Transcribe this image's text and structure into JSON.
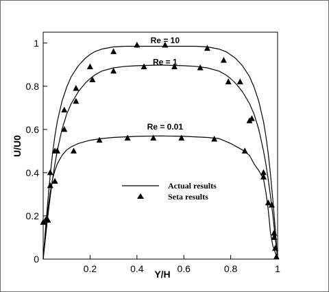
{
  "chart_data": {
    "type": "line",
    "title": "",
    "xlabel": "Y/H",
    "ylabel": "U/U0",
    "xlim": [
      0,
      1.0
    ],
    "ylim": [
      0,
      1.05
    ],
    "x_ticks": [
      {
        "value": 0.2,
        "label": "0.2"
      },
      {
        "value": 0.4,
        "label": "0.4"
      },
      {
        "value": 0.6,
        "label": "0.6"
      },
      {
        "value": 0.8,
        "label": "0.8"
      },
      {
        "value": 1.0,
        "label": "1"
      }
    ],
    "y_ticks": [
      {
        "value": 0,
        "label": "0"
      },
      {
        "value": 0.2,
        "label": "0.2"
      },
      {
        "value": 0.4,
        "label": "0.4"
      },
      {
        "value": 0.6,
        "label": "0.6"
      },
      {
        "value": 0.8,
        "label": "0.8"
      },
      {
        "value": 1.0,
        "label": "1"
      }
    ],
    "grid": false,
    "legend": {
      "placement": "center",
      "entries": [
        {
          "label": "Actual results",
          "style": "line"
        },
        {
          "label": "Seta results",
          "style": "triangle"
        }
      ]
    },
    "series": [
      {
        "name": "Re = 10",
        "label_at": [
          0.52,
          1.0
        ],
        "line": {
          "x": [
            0.0,
            0.005,
            0.01,
            0.02,
            0.03,
            0.04,
            0.05,
            0.06,
            0.08,
            0.1,
            0.12,
            0.15,
            0.18,
            0.2,
            0.22,
            0.25,
            0.3,
            0.35,
            0.4,
            0.5,
            0.6,
            0.65,
            0.7,
            0.75,
            0.78,
            0.8,
            0.82,
            0.85,
            0.88,
            0.9,
            0.92,
            0.94,
            0.95,
            0.96,
            0.97,
            0.98,
            0.99,
            0.995,
            1.0
          ],
          "y": [
            0.0,
            0.07,
            0.14,
            0.27,
            0.39,
            0.49,
            0.57,
            0.635,
            0.73,
            0.795,
            0.845,
            0.895,
            0.93,
            0.947,
            0.96,
            0.972,
            0.982,
            0.985,
            0.985,
            0.985,
            0.985,
            0.985,
            0.982,
            0.972,
            0.96,
            0.945,
            0.93,
            0.895,
            0.845,
            0.795,
            0.73,
            0.635,
            0.57,
            0.49,
            0.39,
            0.27,
            0.14,
            0.07,
            0.0
          ]
        },
        "points": {
          "x": [
            0.01,
            0.03,
            0.05,
            0.09,
            0.14,
            0.2,
            0.3,
            0.4,
            0.52,
            0.7,
            0.77,
            0.84,
            0.88,
            0.96,
            0.985
          ],
          "y": [
            0.18,
            0.4,
            0.5,
            0.69,
            0.79,
            0.89,
            0.96,
            0.99,
            0.99,
            0.975,
            0.92,
            0.82,
            0.64,
            0.26,
            0.12
          ]
        }
      },
      {
        "name": "Re = 1",
        "label_at": [
          0.52,
          0.9
        ],
        "line": {
          "x": [
            0.0,
            0.005,
            0.01,
            0.02,
            0.03,
            0.04,
            0.05,
            0.06,
            0.08,
            0.1,
            0.12,
            0.15,
            0.18,
            0.2,
            0.22,
            0.25,
            0.3,
            0.35,
            0.4,
            0.5,
            0.6,
            0.65,
            0.7,
            0.75,
            0.78,
            0.8,
            0.82,
            0.85,
            0.88,
            0.9,
            0.92,
            0.94,
            0.95,
            0.96,
            0.97,
            0.98,
            0.99,
            0.995,
            1.0
          ],
          "y": [
            0.0,
            0.05,
            0.1,
            0.2,
            0.29,
            0.37,
            0.44,
            0.5,
            0.6,
            0.67,
            0.72,
            0.775,
            0.815,
            0.835,
            0.852,
            0.87,
            0.885,
            0.892,
            0.895,
            0.898,
            0.895,
            0.892,
            0.885,
            0.87,
            0.852,
            0.835,
            0.815,
            0.775,
            0.72,
            0.67,
            0.6,
            0.5,
            0.44,
            0.37,
            0.29,
            0.2,
            0.1,
            0.05,
            0.0
          ]
        },
        "points": {
          "x": [
            0.02,
            0.05,
            0.09,
            0.14,
            0.21,
            0.3,
            0.43,
            0.56,
            0.67,
            0.79,
            0.89,
            0.94,
            0.975,
            0.99
          ],
          "y": [
            0.18,
            0.36,
            0.6,
            0.73,
            0.83,
            0.87,
            0.89,
            0.89,
            0.885,
            0.82,
            0.65,
            0.4,
            0.25,
            0.05
          ]
        }
      },
      {
        "name": "Re = 0.01",
        "label_at": [
          0.52,
          0.6
        ],
        "line": {
          "x": [
            0.0,
            0.005,
            0.01,
            0.02,
            0.03,
            0.04,
            0.05,
            0.06,
            0.08,
            0.1,
            0.12,
            0.15,
            0.2,
            0.25,
            0.3,
            0.4,
            0.5,
            0.6,
            0.7,
            0.75,
            0.8,
            0.85,
            0.88,
            0.9,
            0.92,
            0.94,
            0.95,
            0.96,
            0.97,
            0.98,
            0.99,
            0.995,
            1.0
          ],
          "y": [
            0.0,
            0.06,
            0.12,
            0.23,
            0.31,
            0.37,
            0.41,
            0.44,
            0.48,
            0.505,
            0.52,
            0.535,
            0.55,
            0.558,
            0.563,
            0.568,
            0.57,
            0.568,
            0.563,
            0.558,
            0.535,
            0.505,
            0.48,
            0.44,
            0.41,
            0.37,
            0.31,
            0.23,
            0.12,
            0.06,
            0.03,
            0.015,
            0.0
          ]
        },
        "points": {
          "x": [
            0.0,
            0.03,
            0.06,
            0.13,
            0.24,
            0.36,
            0.47,
            0.59,
            0.73,
            0.86,
            0.94,
            0.985,
            0.995
          ],
          "y": [
            0.17,
            0.34,
            0.5,
            0.5,
            0.55,
            0.56,
            0.56,
            0.56,
            0.555,
            0.5,
            0.38,
            0.1,
            0.01
          ]
        }
      }
    ]
  }
}
